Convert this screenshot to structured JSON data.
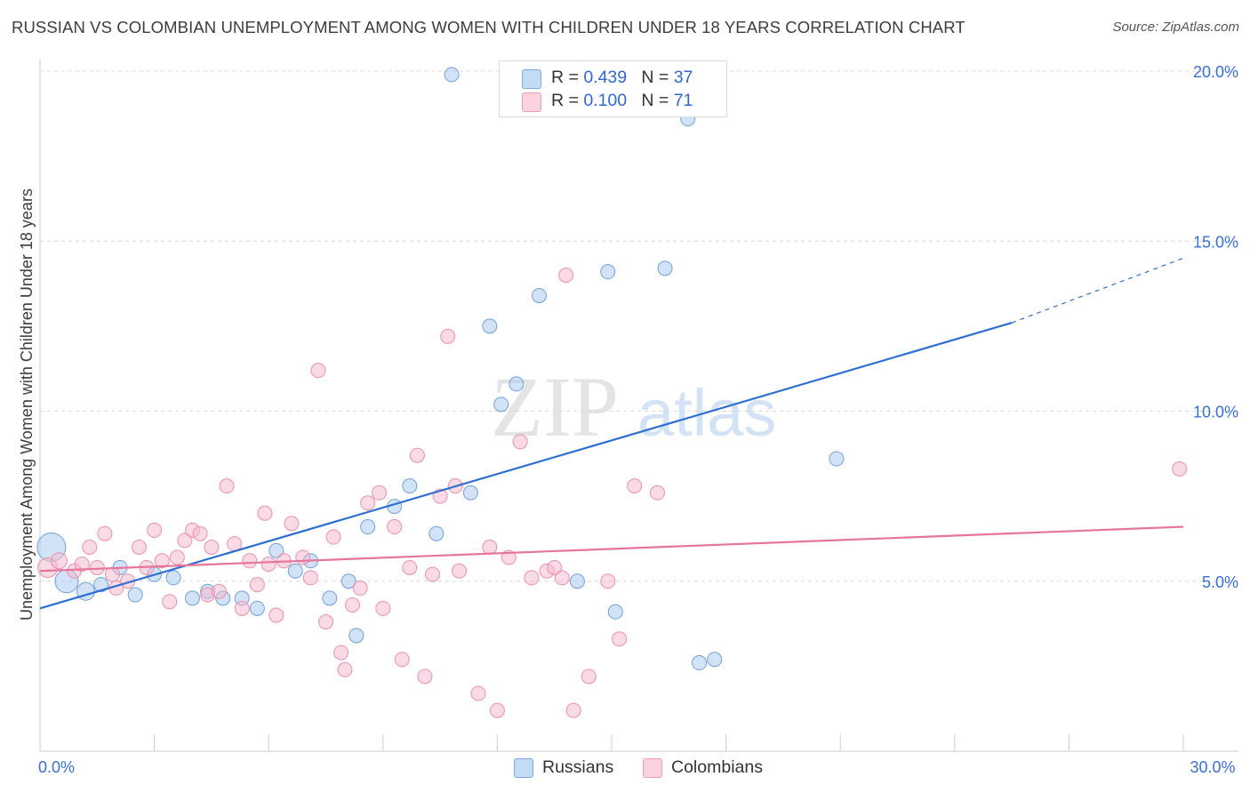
{
  "header": {
    "title": "RUSSIAN VS COLOMBIAN UNEMPLOYMENT AMONG WOMEN WITH CHILDREN UNDER 18 YEARS CORRELATION CHART",
    "source": "Source: ZipAtlas.com"
  },
  "watermark": {
    "part1": "ZIP",
    "part2": "atlas"
  },
  "legend": {
    "rows": [
      {
        "r_label": "R = ",
        "r_value": "0.439",
        "n_label": "N = ",
        "n_value": "37",
        "color": "#a8c8f0"
      },
      {
        "r_label": "R = ",
        "r_value": "0.100",
        "n_label": "N = ",
        "n_value": "71",
        "color": "#f6b8cb"
      }
    ]
  },
  "bottom_legend": [
    {
      "label": "Russians",
      "color": "#a8c8f0"
    },
    {
      "label": "Colombians",
      "color": "#f6b8cb"
    }
  ],
  "chart_data": {
    "type": "scatter",
    "title": "RUSSIAN VS COLOMBIAN UNEMPLOYMENT AMONG WOMEN WITH CHILDREN UNDER 18 YEARS CORRELATION CHART",
    "xlabel": "",
    "ylabel": "Unemployment Among Women with Children Under 18 years",
    "xlim": [
      0,
      30
    ],
    "ylim": [
      0,
      20.5
    ],
    "x_tick_labels": [
      {
        "value": 0,
        "label": "0.0%"
      },
      {
        "value": 30,
        "label": "30.0%"
      }
    ],
    "y_tick_labels": [
      {
        "value": 5,
        "label": "5.0%"
      },
      {
        "value": 10,
        "label": "10.0%"
      },
      {
        "value": 15,
        "label": "15.0%"
      },
      {
        "value": 20,
        "label": "20.0%"
      }
    ],
    "x_minor_ticks": [
      3,
      6,
      9,
      12,
      15,
      18,
      21,
      24,
      27,
      30
    ],
    "grid": "horizontal dashed",
    "legend_position": "top-center",
    "series": [
      {
        "name": "Russians",
        "color": "#a8c8f0",
        "stroke": "#6f9fdc",
        "trend": {
          "x": [
            0,
            25.5
          ],
          "y": [
            4.2,
            12.6
          ],
          "dashed_to": [
            30,
            14.5
          ],
          "color": "#2e6fd2"
        },
        "points": [
          [
            0.3,
            6.0,
            16
          ],
          [
            0.7,
            5.0,
            13
          ],
          [
            1.2,
            4.7,
            10
          ],
          [
            1.6,
            4.9,
            8
          ],
          [
            2.1,
            5.4,
            8
          ],
          [
            2.5,
            4.6,
            8
          ],
          [
            3.0,
            5.2,
            8
          ],
          [
            3.5,
            5.1,
            8
          ],
          [
            4.0,
            4.5,
            8
          ],
          [
            4.4,
            4.7,
            8
          ],
          [
            4.8,
            4.5,
            8
          ],
          [
            5.3,
            4.5,
            8
          ],
          [
            5.7,
            4.2,
            8
          ],
          [
            6.2,
            5.9,
            8
          ],
          [
            6.7,
            5.3,
            8
          ],
          [
            7.1,
            5.6,
            8
          ],
          [
            7.6,
            4.5,
            8
          ],
          [
            8.1,
            5.0,
            8
          ],
          [
            8.3,
            3.4,
            8
          ],
          [
            8.6,
            6.6,
            8
          ],
          [
            9.3,
            7.2,
            8
          ],
          [
            9.7,
            7.8,
            8
          ],
          [
            10.4,
            6.4,
            8
          ],
          [
            10.8,
            19.9,
            8
          ],
          [
            11.3,
            7.6,
            8
          ],
          [
            11.8,
            12.5,
            8
          ],
          [
            12.1,
            10.2,
            8
          ],
          [
            12.5,
            10.8,
            8
          ],
          [
            13.1,
            13.4,
            8
          ],
          [
            14.1,
            5.0,
            8
          ],
          [
            14.9,
            14.1,
            8
          ],
          [
            15.1,
            4.1,
            8
          ],
          [
            16.4,
            14.2,
            8
          ],
          [
            17.0,
            18.6,
            8
          ],
          [
            17.3,
            2.6,
            8
          ],
          [
            17.7,
            2.7,
            8
          ],
          [
            20.9,
            8.6,
            8
          ]
        ]
      },
      {
        "name": "Colombians",
        "color": "#f6b8cb",
        "stroke": "#ec8fac",
        "trend": {
          "x": [
            0,
            30
          ],
          "y": [
            5.3,
            6.6
          ],
          "color": "#e5759b"
        },
        "points": [
          [
            0.2,
            5.4,
            11
          ],
          [
            0.5,
            5.6,
            9
          ],
          [
            0.9,
            5.3,
            8
          ],
          [
            1.1,
            5.5,
            8
          ],
          [
            1.3,
            6.0,
            8
          ],
          [
            1.5,
            5.4,
            8
          ],
          [
            1.7,
            6.4,
            8
          ],
          [
            1.9,
            5.2,
            8
          ],
          [
            2.0,
            4.8,
            8
          ],
          [
            2.3,
            5.0,
            8
          ],
          [
            2.6,
            6.0,
            8
          ],
          [
            2.8,
            5.4,
            8
          ],
          [
            3.0,
            6.5,
            8
          ],
          [
            3.2,
            5.6,
            8
          ],
          [
            3.4,
            4.4,
            8
          ],
          [
            3.6,
            5.7,
            8
          ],
          [
            3.8,
            6.2,
            8
          ],
          [
            4.0,
            6.5,
            8
          ],
          [
            4.2,
            6.4,
            8
          ],
          [
            4.4,
            4.6,
            8
          ],
          [
            4.5,
            6.0,
            8
          ],
          [
            4.7,
            4.7,
            8
          ],
          [
            4.9,
            7.8,
            8
          ],
          [
            5.1,
            6.1,
            8
          ],
          [
            5.3,
            4.2,
            8
          ],
          [
            5.5,
            5.6,
            8
          ],
          [
            5.7,
            4.9,
            8
          ],
          [
            5.9,
            7.0,
            8
          ],
          [
            6.2,
            4.0,
            8
          ],
          [
            6.4,
            5.6,
            8
          ],
          [
            6.6,
            6.7,
            8
          ],
          [
            6.9,
            5.7,
            8
          ],
          [
            7.1,
            5.1,
            8
          ],
          [
            7.3,
            11.2,
            8
          ],
          [
            7.5,
            3.8,
            8
          ],
          [
            7.7,
            6.3,
            8
          ],
          [
            7.9,
            2.9,
            8
          ],
          [
            8.0,
            2.4,
            8
          ],
          [
            8.2,
            4.3,
            8
          ],
          [
            8.4,
            4.8,
            8
          ],
          [
            8.6,
            7.3,
            8
          ],
          [
            8.9,
            7.6,
            8
          ],
          [
            9.0,
            4.2,
            8
          ],
          [
            9.3,
            6.6,
            8
          ],
          [
            9.5,
            2.7,
            8
          ],
          [
            9.7,
            5.4,
            8
          ],
          [
            9.9,
            8.7,
            8
          ],
          [
            10.1,
            2.2,
            8
          ],
          [
            10.3,
            5.2,
            8
          ],
          [
            10.5,
            7.5,
            8
          ],
          [
            10.7,
            12.2,
            8
          ],
          [
            10.9,
            7.8,
            8
          ],
          [
            11.5,
            1.7,
            8
          ],
          [
            11.8,
            6.0,
            8
          ],
          [
            12.0,
            1.2,
            8
          ],
          [
            12.3,
            5.7,
            8
          ],
          [
            12.6,
            9.1,
            8
          ],
          [
            12.9,
            5.1,
            8
          ],
          [
            13.3,
            5.3,
            8
          ],
          [
            13.5,
            5.4,
            8
          ],
          [
            13.8,
            14.0,
            8
          ],
          [
            14.0,
            1.2,
            8
          ],
          [
            14.4,
            2.2,
            8
          ],
          [
            14.9,
            5.0,
            8
          ],
          [
            15.2,
            3.3,
            8
          ],
          [
            15.6,
            7.8,
            8
          ],
          [
            16.2,
            7.6,
            8
          ],
          [
            29.9,
            8.3,
            8
          ],
          [
            13.7,
            5.1,
            8
          ],
          [
            11.0,
            5.3,
            8
          ],
          [
            6.0,
            5.5,
            8
          ]
        ]
      }
    ]
  }
}
